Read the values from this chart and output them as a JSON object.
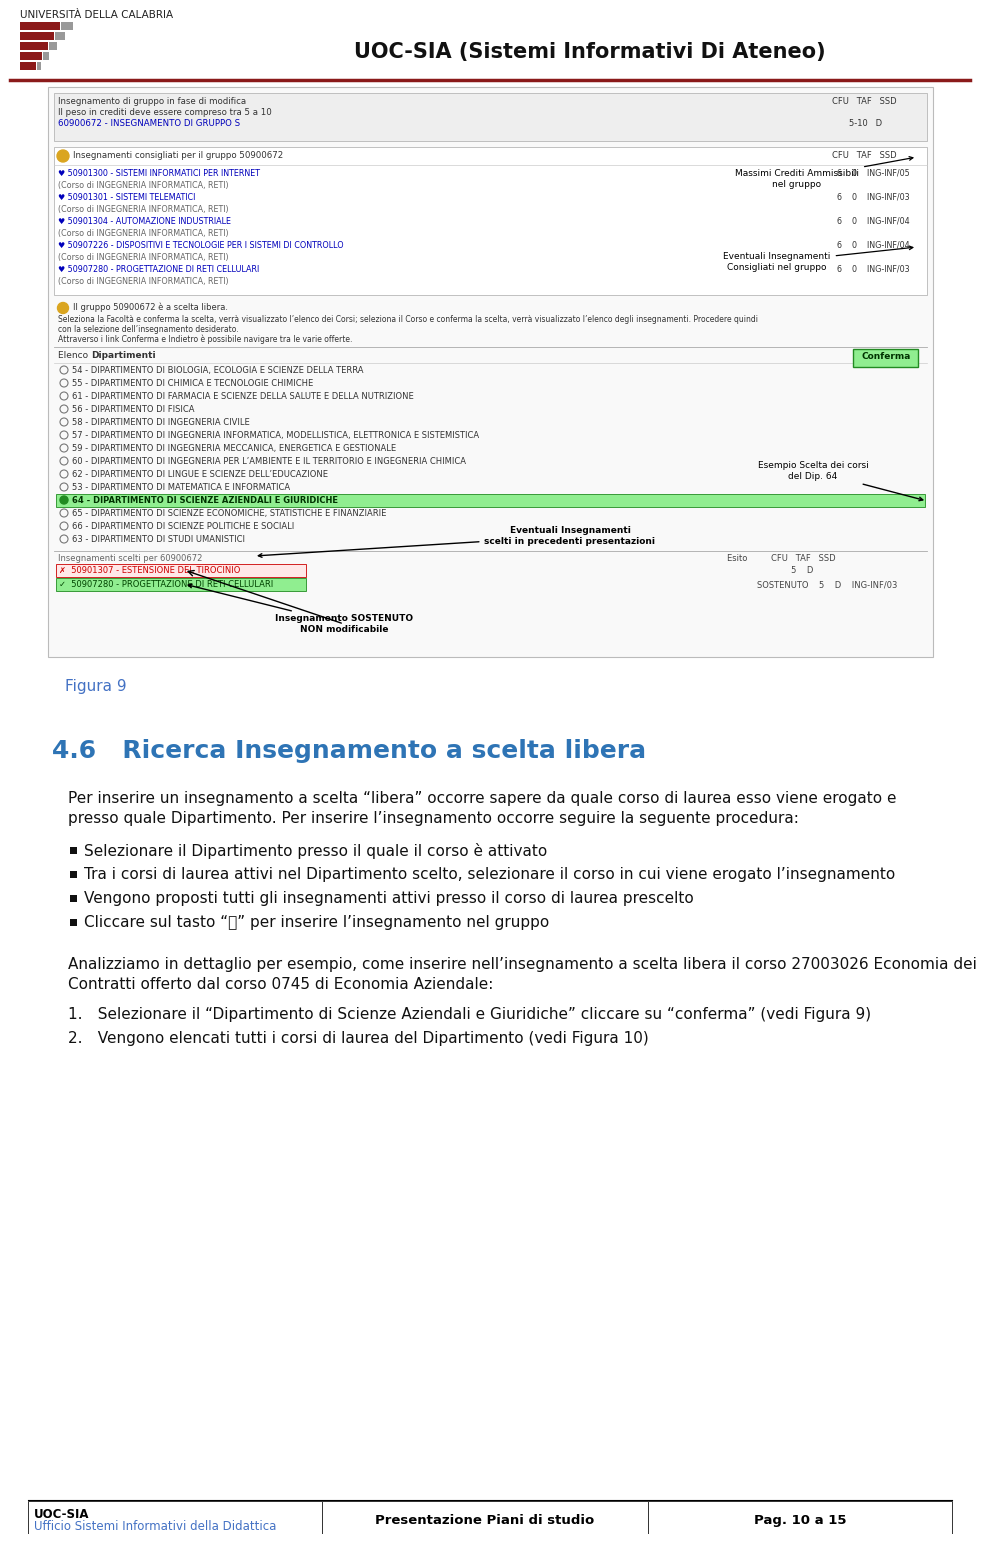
{
  "page_title": "UOC-SIA (Sistemi Informativi Di Ateneo)",
  "university_name": "UNIVERSITÀ DELLA CALABRIA",
  "figure_label": "Figura 9",
  "figure_label_color": "#4472C4",
  "section_title": "4.6   Ricerca Insegnamento a scelta libera",
  "section_title_color": "#2E74B5",
  "body_text_1a": "Per inserire un insegnamento a scelta “libera” occorre sapere da quale corso di laurea esso viene erogato e",
  "body_text_1b": "presso quale Dipartimento. Per inserire l’insegnamento occorre seguire la seguente procedura:",
  "bullet_points": [
    "Selezionare il Dipartimento presso il quale il corso è attivato",
    "Tra i corsi di laurea attivi nel Dipartimento scelto, selezionare il corso in cui viene erogato l’insegnamento",
    "Vengono proposti tutti gli insegnamenti attivi presso il corso di laurea prescelto",
    "Cliccare sul tasto “➕” per inserire l’insegnamento nel gruppo"
  ],
  "body_text_2a": "Analizziamo in dettaglio per esempio, come inserire nell’insegnamento a scelta libera il corso 27003026 Economia dei",
  "body_text_2b": "Contratti offerto dal corso 0745 di Economia Aziendale:",
  "numbered_items": [
    "Selezionare il “Dipartimento di Scienze Aziendali e Giuridiche” cliccare su “conferma” (vedi Figura 9)",
    "Vengono elencati tutti i corsi di laurea del Dipartimento (vedi Figura 10)"
  ],
  "footer_left_line1": "UOC-SIA",
  "footer_left_line2": "Ufficio Sistemi Informativi della Didattica",
  "footer_center": "Presentazione Piani di studio",
  "footer_right": "Pag. 10 a 15",
  "footer_left_color": "#000000",
  "footer_left_line2_color": "#4472C4",
  "bg_color": "#ffffff",
  "departments": [
    "54 - DIPARTIMENTO DI BIOLOGIA, ECOLOGIA E SCIENZE DELLA TERRA",
    "55 - DIPARTIMENTO DI CHIMICA E TECNOLOGIE CHIMICHE",
    "61 - DIPARTIMENTO DI FARMACIA E SCIENZE DELLA SALUTE E DELLA NUTRIZIONE",
    "56 - DIPARTIMENTO DI FISICA",
    "58 - DIPARTIMENTO DI INGEGNERIA CIVILE",
    "57 - DIPARTIMENTO DI INGEGNERIA INFORMATICA, MODELLISTICA, ELETTRONICA E SISTEMISTICA",
    "59 - DIPARTIMENTO DI INGEGNERIA MECCANICA, ENERGETICA E GESTIONALE",
    "60 - DIPARTIMENTO DI INGEGNERIA PER L’AMBIENTE E IL TERRITORIO E INGEGNERIA CHIMICA",
    "62 - DIPARTIMENTO DI LINGUE E SCIENZE DELL’EDUCAZIONE",
    "53 - DIPARTIMENTO DI MATEMATICA E INFORMATICA",
    "64 - DIPARTIMENTO DI SCIENZE AZIENDALI E GIURIDICHE",
    "65 - DIPARTIMENTO DI SCIENZE ECONOMICHE, STATISTICHE E FINANZIARIE",
    "66 - DIPARTIMENTO DI SCIENZE POLITICHE E SOCIALI",
    "63 - DIPARTIMENTO DI STUDI UMANISTICI"
  ],
  "selected_dept_idx": 10
}
